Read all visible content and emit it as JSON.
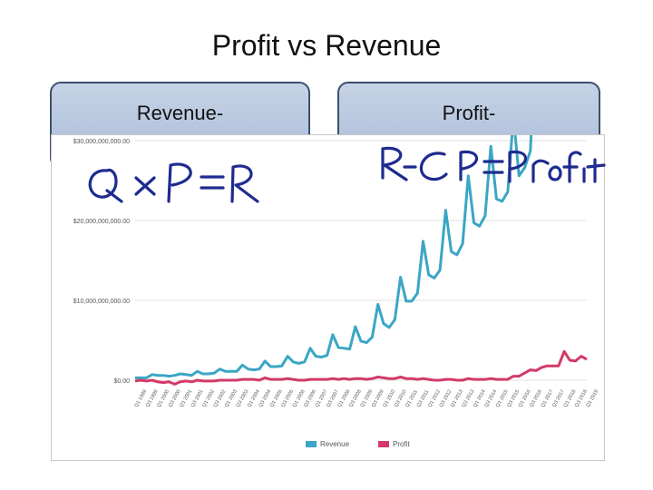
{
  "slide": {
    "title": "Profit vs Revenue",
    "box_left": "Revenue-",
    "box_right": "Profit-",
    "handwriting_left": "QxP=R",
    "handwriting_right": "R-CP=Profit"
  },
  "chart_data": {
    "type": "line",
    "title": "",
    "xlabel": "",
    "ylabel": "",
    "ylim": [
      0,
      30000000000
    ],
    "yticks": [
      "$0.00",
      "$10,000,000,000.00",
      "$20,000,000,000.00",
      "$30,000,000,000.00"
    ],
    "legend_position": "bottom-center",
    "x": [
      "Q1 1999",
      "Q2 1999",
      "Q3 1999",
      "Q4 1999",
      "Q1 2000",
      "Q2 2000",
      "Q3 2000",
      "Q4 2000",
      "Q1 2001",
      "Q2 2001",
      "Q3 2001",
      "Q4 2001",
      "Q1 2002",
      "Q2 2002",
      "Q3 2002",
      "Q4 2002",
      "Q1 2003",
      "Q2 2003",
      "Q3 2003",
      "Q4 2003",
      "Q1 2004",
      "Q2 2004",
      "Q3 2004",
      "Q4 2004",
      "Q1 2005",
      "Q2 2005",
      "Q3 2005",
      "Q4 2005",
      "Q1 2006",
      "Q2 2006",
      "Q3 2006",
      "Q4 2006",
      "Q1 2007",
      "Q2 2007",
      "Q3 2007",
      "Q4 2007",
      "Q1 2008",
      "Q2 2008",
      "Q3 2008",
      "Q4 2008",
      "Q1 2009",
      "Q2 2009",
      "Q3 2009",
      "Q4 2009",
      "Q1 2010",
      "Q2 2010",
      "Q3 2010",
      "Q4 2010",
      "Q1 2011",
      "Q2 2011",
      "Q3 2011",
      "Q4 2011",
      "Q1 2012",
      "Q2 2012",
      "Q3 2012",
      "Q4 2012",
      "Q1 2013",
      "Q2 2013",
      "Q3 2013",
      "Q4 2013",
      "Q1 2014",
      "Q2 2014",
      "Q3 2014",
      "Q4 2014",
      "Q1 2015",
      "Q2 2015",
      "Q3 2015",
      "Q4 2015",
      "Q1 2016",
      "Q2 2016",
      "Q3 2016",
      "Q4 2016",
      "Q1 2017",
      "Q2 2017",
      "Q3 2017",
      "Q4 2017",
      "Q1 2018",
      "Q2 2018",
      "Q3 2018",
      "Q4 2018",
      "Q1 2019"
    ],
    "x_ticks_every": 2,
    "series": [
      {
        "name": "Revenue",
        "color": "#3ba6c4",
        "values": [
          0.3,
          0.3,
          0.3,
          0.7,
          0.6,
          0.6,
          0.5,
          0.6,
          0.8,
          0.7,
          0.6,
          1.1,
          0.8,
          0.8,
          0.9,
          1.4,
          1.1,
          1.1,
          1.1,
          1.9,
          1.4,
          1.3,
          1.4,
          2.4,
          1.7,
          1.7,
          1.8,
          3.0,
          2.3,
          2.1,
          2.3,
          4.0,
          3.0,
          2.9,
          3.1,
          5.7,
          4.1,
          4.0,
          3.9,
          6.7,
          4.9,
          4.7,
          5.4,
          9.5,
          7.1,
          6.6,
          7.6,
          12.9,
          9.9,
          9.9,
          10.9,
          17.4,
          13.2,
          12.8,
          13.8,
          21.3,
          16.1,
          15.7,
          17.1,
          25.6,
          19.7,
          19.3,
          20.6,
          29.3,
          22.7,
          22.4,
          23.6,
          33.0,
          25.6,
          26.6,
          28.7,
          43.7,
          35.7,
          37.9,
          43.7,
          60.5,
          51.0,
          52.9,
          56.9,
          72.4,
          59.7
        ]
      },
      {
        "name": "Profit",
        "color": "#d33a68",
        "values": [
          -0.1,
          0.0,
          -0.1,
          0.0,
          -0.2,
          -0.3,
          -0.2,
          -0.5,
          -0.2,
          -0.1,
          -0.2,
          0.0,
          -0.1,
          -0.1,
          -0.1,
          0.0,
          0.0,
          0.0,
          0.0,
          0.1,
          0.1,
          0.1,
          0.0,
          0.3,
          0.1,
          0.1,
          0.1,
          0.2,
          0.1,
          0.0,
          0.0,
          0.1,
          0.1,
          0.1,
          0.1,
          0.2,
          0.1,
          0.2,
          0.1,
          0.2,
          0.2,
          0.1,
          0.2,
          0.4,
          0.3,
          0.2,
          0.2,
          0.4,
          0.2,
          0.2,
          0.1,
          0.2,
          0.1,
          0.0,
          0.0,
          0.1,
          0.1,
          0.0,
          0.0,
          0.2,
          0.1,
          0.1,
          0.1,
          0.2,
          0.1,
          0.1,
          0.1,
          0.5,
          0.5,
          0.9,
          1.3,
          1.2,
          1.6,
          1.8,
          1.8,
          1.8,
          3.6,
          2.5,
          2.4,
          3.0,
          2.6
        ]
      }
    ],
    "y_unit_note": ""
  }
}
